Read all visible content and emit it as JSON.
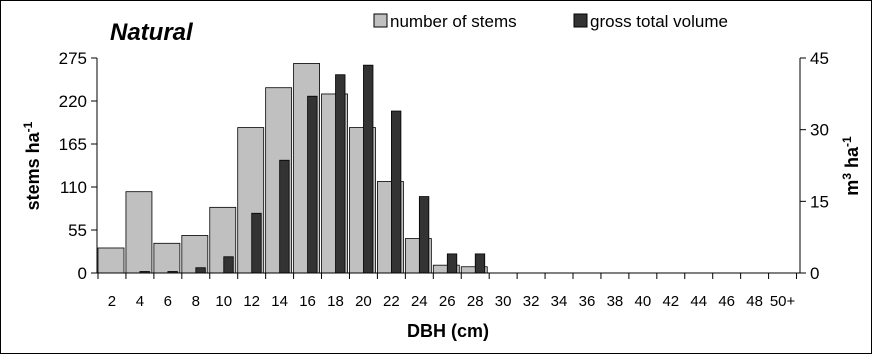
{
  "chart_data": {
    "type": "bar",
    "title": "Natural",
    "xlabel": "DBH (cm)",
    "ylabel_left": "stems ha",
    "ylabel_left_sup": "-1",
    "ylabel_right_pre": "m",
    "ylabel_right_sup1": "3",
    "ylabel_right_mid": " ha",
    "ylabel_right_sup2": "-1",
    "ylim_left": [
      0,
      275
    ],
    "ylim_right": [
      0,
      45
    ],
    "yticks_left": [
      "0",
      "55",
      "110",
      "165",
      "220",
      "275"
    ],
    "yticks_right": [
      "0",
      "15",
      "30",
      "45"
    ],
    "x_tick_labels": [
      "2",
      "4",
      "6",
      "8",
      "10",
      "12",
      "14",
      "16",
      "18",
      "20",
      "22",
      "24",
      "26",
      "28",
      "30",
      "32",
      "34",
      "36",
      "38",
      "40",
      "42",
      "44",
      "46",
      "48",
      "50+"
    ],
    "legend_position": "top-right",
    "colors": {
      "stems": "#c0c0c0",
      "volume": "#333333",
      "edge": "#000000"
    },
    "series": [
      {
        "name": "number of stems",
        "axis": "left",
        "values": [
          32,
          104,
          38,
          48,
          84,
          186,
          237,
          268,
          229,
          186,
          117,
          44,
          10,
          8,
          0,
          0,
          0,
          0,
          0,
          0,
          0,
          0,
          0,
          0,
          0
        ]
      },
      {
        "name": "gross total volume",
        "axis": "right",
        "values": [
          0,
          0.3,
          0.3,
          1.1,
          3.4,
          12.5,
          23.6,
          37,
          41.5,
          43.5,
          33.9,
          16,
          4,
          4,
          0,
          0,
          0,
          0,
          0,
          0,
          0,
          0,
          0,
          0,
          0
        ]
      }
    ]
  }
}
